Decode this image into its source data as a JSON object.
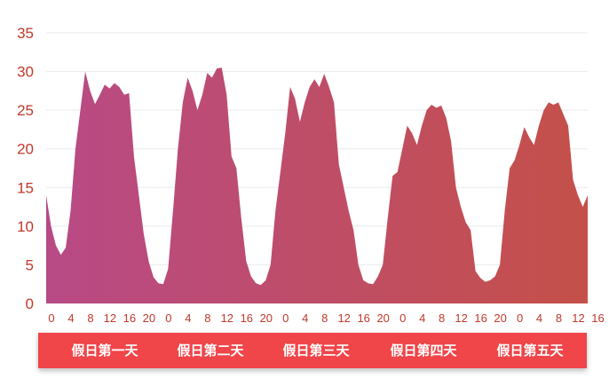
{
  "chart_data": {
    "type": "area",
    "title": "",
    "xlabel": "",
    "ylabel": "",
    "ylim": [
      0,
      35
    ],
    "yticks": [
      0,
      5,
      10,
      15,
      20,
      25,
      30,
      35
    ],
    "grid": true,
    "x_tick_labels": [
      "0",
      "4",
      "8",
      "12",
      "16",
      "20"
    ],
    "day_labels": [
      "假日第一天",
      "假日第二天",
      "假日第三天",
      "假日第四天",
      "假日第五天"
    ],
    "colors": {
      "fill_start": "#b84a86",
      "fill_end": "#c55049",
      "band": "#f0454a",
      "tick_text": "#c0392b"
    },
    "series": [
      {
        "values": [
          14,
          10,
          7.5,
          6.3,
          7.2,
          12,
          20,
          25,
          30,
          27.5,
          25.8,
          27,
          28.3,
          27.8,
          28.5,
          28,
          27,
          27.2,
          19,
          14,
          9,
          5.5,
          3.4,
          2.6
        ]
      },
      {
        "values": [
          2.5,
          4.5,
          12,
          20,
          26,
          29.2,
          27.5,
          25,
          27,
          29.8,
          29.2,
          30.4,
          30.5,
          27,
          19,
          17.5,
          11,
          5.5,
          3.5,
          2.6,
          2.4,
          3,
          5,
          12
        ]
      },
      {
        "values": [
          17,
          22,
          28,
          26.5,
          23.5,
          26,
          28,
          29,
          28,
          29.7,
          28,
          26,
          18,
          15,
          12,
          9.5,
          5,
          3,
          2.6,
          2.5,
          3.5,
          5,
          11,
          16.5
        ]
      },
      {
        "values": [
          17,
          20,
          23,
          22,
          20.5,
          23,
          25,
          25.7,
          25.3,
          25.6,
          24,
          21,
          15,
          12.5,
          10.5,
          9.5,
          4.2,
          3.3,
          2.8,
          3,
          3.5,
          5,
          12,
          17.5
        ]
      },
      {
        "values": [
          18.5,
          20.5,
          22.8,
          21.5,
          20.5,
          23,
          25,
          26,
          25.7,
          26,
          24.5,
          23,
          16,
          14,
          12.5,
          14
        ]
      }
    ]
  }
}
